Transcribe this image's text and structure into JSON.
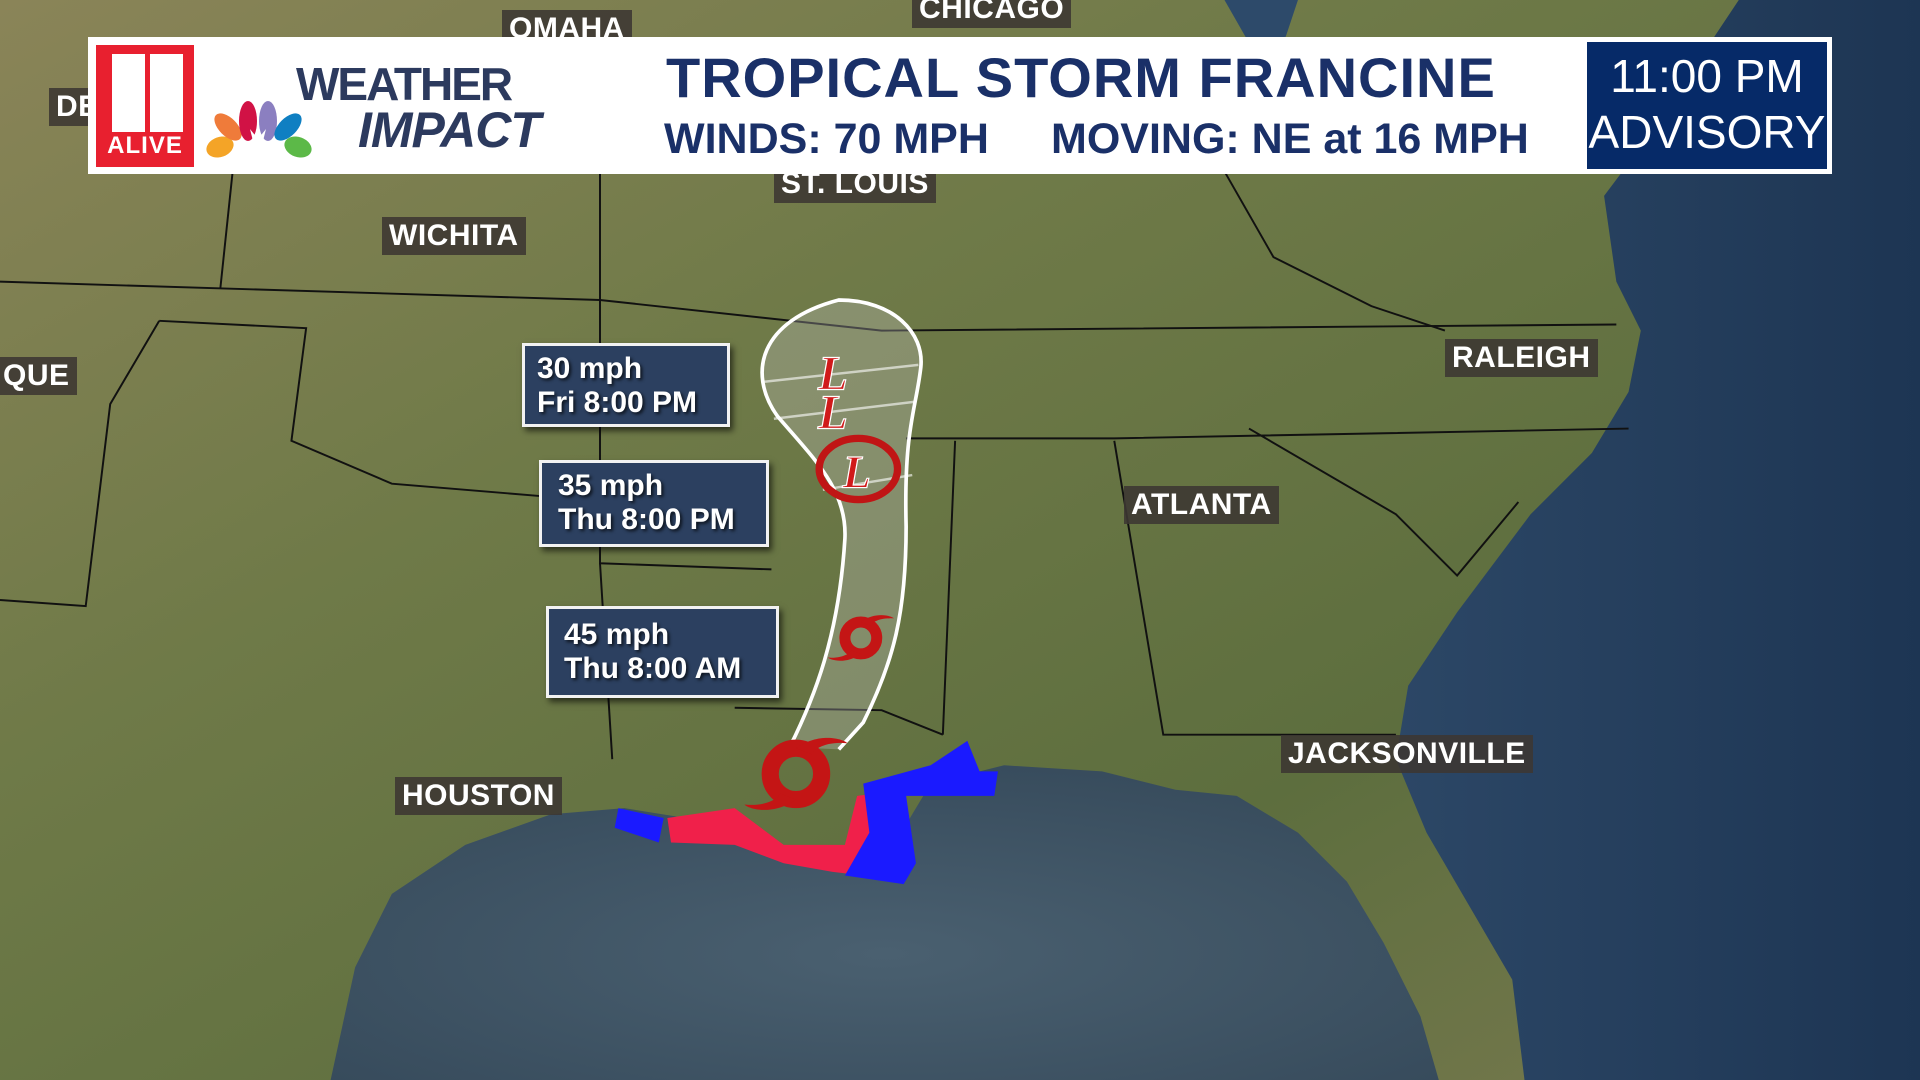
{
  "header": {
    "station_logo_text": "ALIVE",
    "brand_line1": "WEATHER",
    "brand_line2": "IMPACT",
    "title": "TROPICAL STORM FRANCINE",
    "winds": "WINDS: 70 MPH",
    "moving": "MOVING: NE at 16 MPH",
    "advisory_time": "11:00 PM",
    "advisory_label": "ADVISORY"
  },
  "cities": [
    "OMAHA",
    "CHICAGO",
    "DE",
    "ST. LOUIS",
    "WICHITA",
    "QUE",
    "RALEIGH",
    "ATLANTA",
    "JACKSONVILLE",
    "HOUSTON"
  ],
  "forecast_points": [
    {
      "wind": "30 mph",
      "time": "Fri 8:00 PM",
      "icon": "low-pressure-icon"
    },
    {
      "wind": "35 mph",
      "time": "Thu 8:00 PM",
      "icon": "low-pressure-circled-icon"
    },
    {
      "wind": "45 mph",
      "time": "Thu 8:00 AM",
      "icon": "tropical-storm-icon"
    }
  ],
  "colors": {
    "brand_navy": "#1a3068",
    "advisory_bg": "#062a68",
    "callout_bg": "#2c4060",
    "storm_red": "#d01a1a",
    "warning_red": "#f0204a",
    "watch_blue": "#1a1aff",
    "station_red": "#e8202f"
  }
}
